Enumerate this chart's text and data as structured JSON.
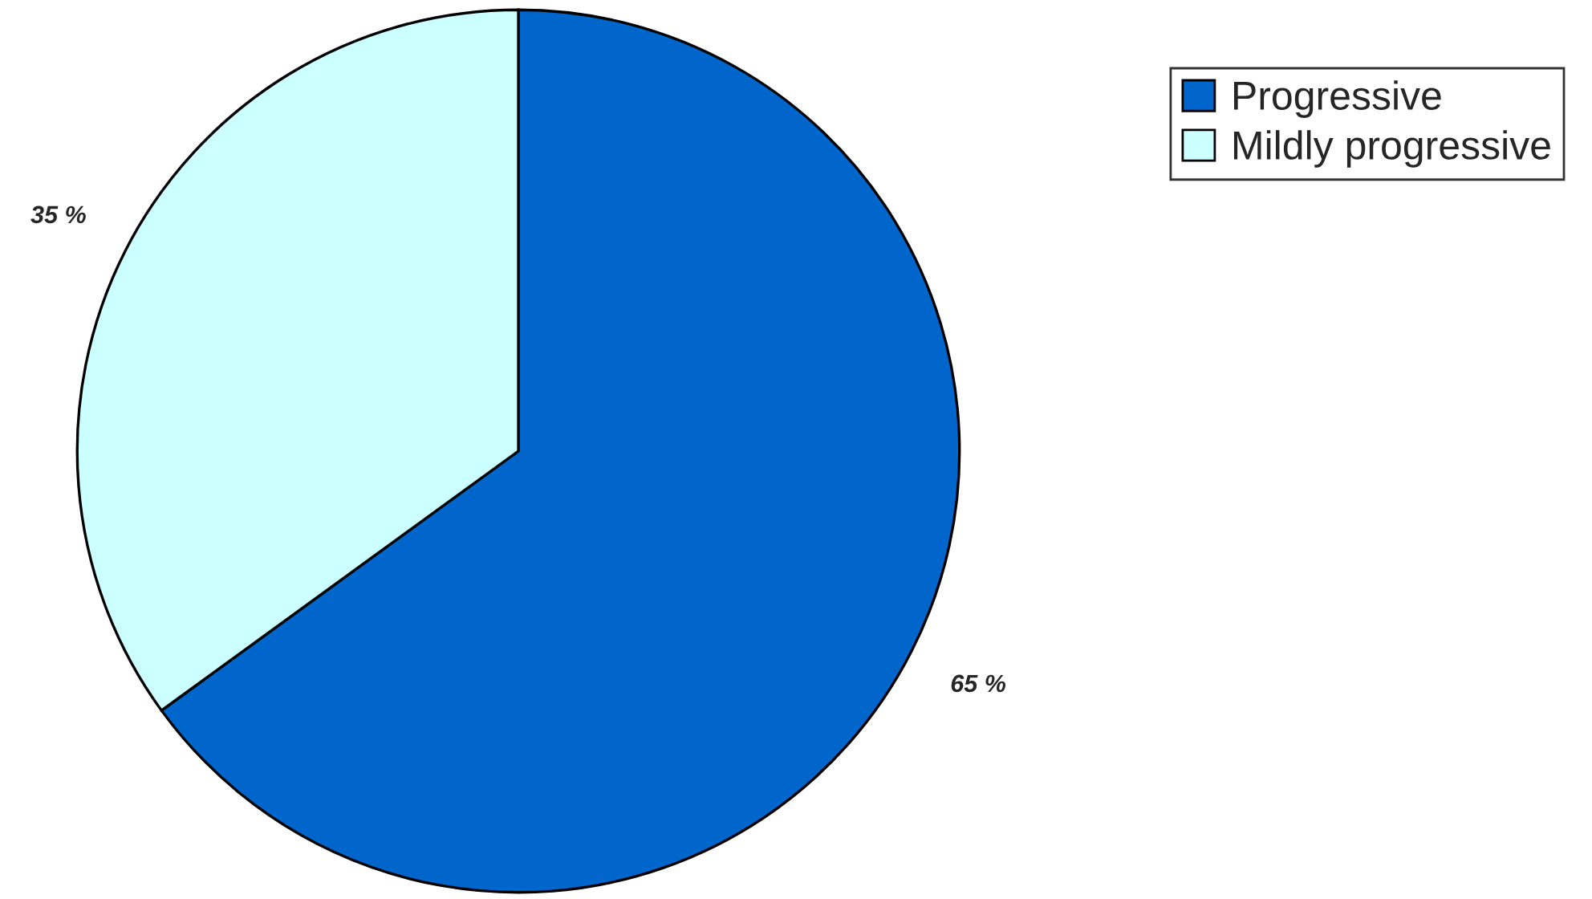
{
  "chart_data": {
    "type": "pie",
    "categories": [
      "Progressive",
      "Mildly progressive"
    ],
    "values": [
      65,
      35
    ],
    "colors": [
      "#0066cc",
      "#ccffff"
    ],
    "value_labels": [
      "65 %",
      "35 %"
    ],
    "legend": "top right"
  }
}
